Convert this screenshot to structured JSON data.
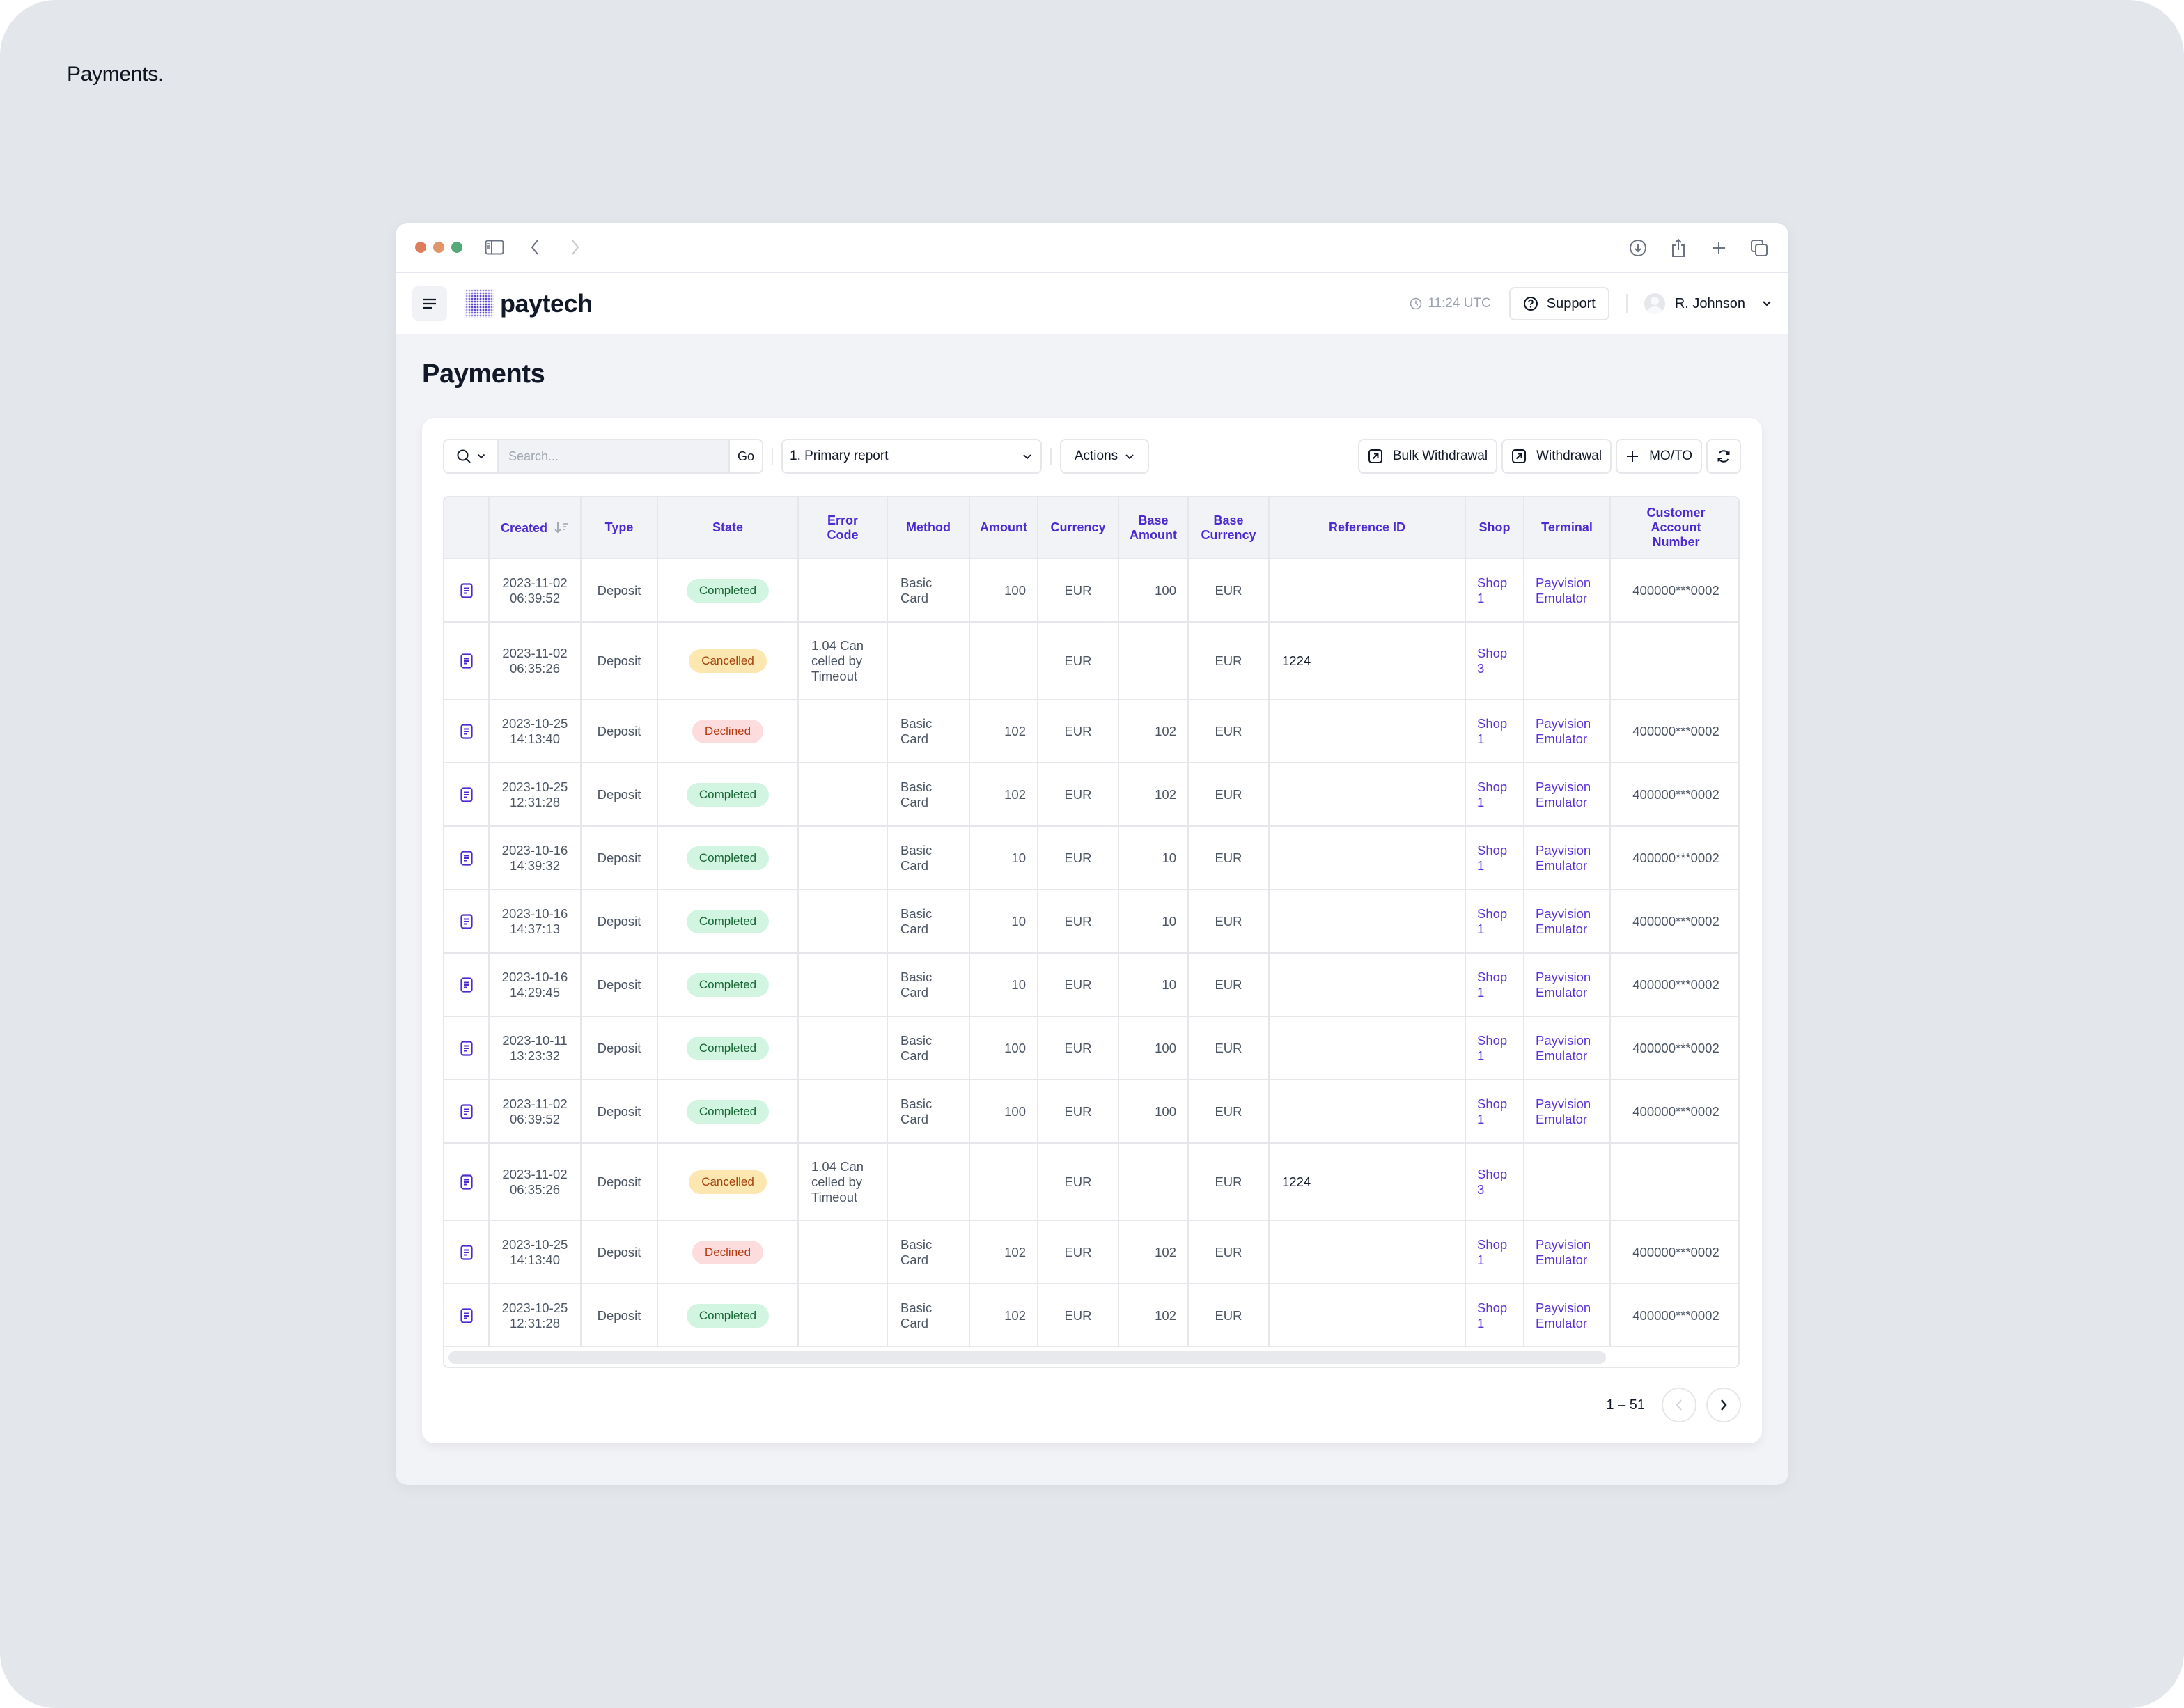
{
  "canvas": {
    "title": "Payments."
  },
  "browser": {
    "traffic_lights": [
      "#de7d5c",
      "#e0956a",
      "#55a877"
    ],
    "icons": [
      "sidebar-icon",
      "back-icon",
      "forward-icon",
      "download-icon",
      "share-icon",
      "new-tab-icon",
      "tabs-icon"
    ]
  },
  "header": {
    "brand": "paytech",
    "time": "11:24 UTC",
    "support_label": "Support",
    "user_name": "R. Johnson"
  },
  "page": {
    "title": "Payments"
  },
  "toolbar": {
    "search_placeholder": "Search...",
    "search_value": "",
    "go_label": "Go",
    "report_selected": "1. Primary report",
    "actions_label": "Actions",
    "bulk_withdrawal_label": "Bulk Withdrawal",
    "withdrawal_label": "Withdrawal",
    "moto_label": "MO/TO"
  },
  "table": {
    "columns": [
      {
        "key": "icon",
        "label": ""
      },
      {
        "key": "created",
        "label": "Created",
        "sortable": true
      },
      {
        "key": "type",
        "label": "Type"
      },
      {
        "key": "state",
        "label": "State"
      },
      {
        "key": "error_code",
        "label": "Error Code"
      },
      {
        "key": "method",
        "label": "Method"
      },
      {
        "key": "amount",
        "label": "Amount"
      },
      {
        "key": "currency",
        "label": "Currency"
      },
      {
        "key": "base_amount",
        "label": "Base Amount"
      },
      {
        "key": "base_currency",
        "label": "Base Currency"
      },
      {
        "key": "reference_id",
        "label": "Reference ID"
      },
      {
        "key": "shop",
        "label": "Shop"
      },
      {
        "key": "terminal",
        "label": "Terminal"
      },
      {
        "key": "customer_account_number",
        "label": "Customer Account Number"
      }
    ],
    "rows": [
      {
        "created_date": "2023-11-02",
        "created_time": "06:39:52",
        "type": "Deposit",
        "state": "Completed",
        "error_code": "",
        "method": "Basic Card",
        "amount": "100",
        "currency": "EUR",
        "base_amount": "100",
        "base_currency": "EUR",
        "reference_id": "",
        "shop": "Shop 1",
        "terminal": "Payvision Emulator",
        "customer_account_number": "400000***0002"
      },
      {
        "created_date": "2023-11-02",
        "created_time": "06:35:26",
        "type": "Deposit",
        "state": "Cancelled",
        "error_code": "1.04 Cancelled by Timeout",
        "method": "",
        "amount": "",
        "currency": "EUR",
        "base_amount": "",
        "base_currency": "EUR",
        "reference_id": "1224",
        "shop": "Shop 3",
        "terminal": "",
        "customer_account_number": ""
      },
      {
        "created_date": "2023-10-25",
        "created_time": "14:13:40",
        "type": "Deposit",
        "state": "Declined",
        "error_code": "",
        "method": "Basic Card",
        "amount": "102",
        "currency": "EUR",
        "base_amount": "102",
        "base_currency": "EUR",
        "reference_id": "",
        "shop": "Shop 1",
        "terminal": "Payvision Emulator",
        "customer_account_number": "400000***0002"
      },
      {
        "created_date": "2023-10-25",
        "created_time": "12:31:28",
        "type": "Deposit",
        "state": "Completed",
        "error_code": "",
        "method": "Basic Card",
        "amount": "102",
        "currency": "EUR",
        "base_amount": "102",
        "base_currency": "EUR",
        "reference_id": "",
        "shop": "Shop 1",
        "terminal": "Payvision Emulator",
        "customer_account_number": "400000***0002"
      },
      {
        "created_date": "2023-10-16",
        "created_time": "14:39:32",
        "type": "Deposit",
        "state": "Completed",
        "error_code": "",
        "method": "Basic Card",
        "amount": "10",
        "currency": "EUR",
        "base_amount": "10",
        "base_currency": "EUR",
        "reference_id": "",
        "shop": "Shop 1",
        "terminal": "Payvision Emulator",
        "customer_account_number": "400000***0002"
      },
      {
        "created_date": "2023-10-16",
        "created_time": "14:37:13",
        "type": "Deposit",
        "state": "Completed",
        "error_code": "",
        "method": "Basic Card",
        "amount": "10",
        "currency": "EUR",
        "base_amount": "10",
        "base_currency": "EUR",
        "reference_id": "",
        "shop": "Shop 1",
        "terminal": "Payvision Emulator",
        "customer_account_number": "400000***0002"
      },
      {
        "created_date": "2023-10-16",
        "created_time": "14:29:45",
        "type": "Deposit",
        "state": "Completed",
        "error_code": "",
        "method": "Basic Card",
        "amount": "10",
        "currency": "EUR",
        "base_amount": "10",
        "base_currency": "EUR",
        "reference_id": "",
        "shop": "Shop 1",
        "terminal": "Payvision Emulator",
        "customer_account_number": "400000***0002"
      },
      {
        "created_date": "2023-10-11",
        "created_time": "13:23:32",
        "type": "Deposit",
        "state": "Completed",
        "error_code": "",
        "method": "Basic Card",
        "amount": "100",
        "currency": "EUR",
        "base_amount": "100",
        "base_currency": "EUR",
        "reference_id": "",
        "shop": "Shop 1",
        "terminal": "Payvision Emulator",
        "customer_account_number": "400000***0002"
      },
      {
        "created_date": "2023-11-02",
        "created_time": "06:39:52",
        "type": "Deposit",
        "state": "Completed",
        "error_code": "",
        "method": "Basic Card",
        "amount": "100",
        "currency": "EUR",
        "base_amount": "100",
        "base_currency": "EUR",
        "reference_id": "",
        "shop": "Shop 1",
        "terminal": "Payvision Emulator",
        "customer_account_number": "400000***0002"
      },
      {
        "created_date": "2023-11-02",
        "created_time": "06:35:26",
        "type": "Deposit",
        "state": "Cancelled",
        "error_code": "1.04 Cancelled by Timeout",
        "method": "",
        "amount": "",
        "currency": "EUR",
        "base_amount": "",
        "base_currency": "EUR",
        "reference_id": "1224",
        "shop": "Shop 3",
        "terminal": "",
        "customer_account_number": ""
      },
      {
        "created_date": "2023-10-25",
        "created_time": "14:13:40",
        "type": "Deposit",
        "state": "Declined",
        "error_code": "",
        "method": "Basic Card",
        "amount": "102",
        "currency": "EUR",
        "base_amount": "102",
        "base_currency": "EUR",
        "reference_id": "",
        "shop": "Shop 1",
        "terminal": "Payvision Emulator",
        "customer_account_number": "400000***0002"
      },
      {
        "created_date": "2023-10-25",
        "created_time": "12:31:28",
        "type": "Deposit",
        "state": "Completed",
        "error_code": "",
        "method": "Basic Card",
        "amount": "102",
        "currency": "EUR",
        "base_amount": "102",
        "base_currency": "EUR",
        "reference_id": "",
        "shop": "Shop 1",
        "terminal": "Payvision Emulator",
        "customer_account_number": "400000***0002"
      }
    ]
  },
  "pagination": {
    "range": "1 – 51"
  },
  "colors": {
    "accent": "#4e2bd1",
    "link": "#5b32d8",
    "completed_bg": "#d1f5e0",
    "completed_text": "#166534",
    "cancelled_bg": "#fde7b0",
    "cancelled_text": "#a4410e",
    "declined_bg": "#fcdcdc",
    "declined_text": "#b8390f"
  }
}
